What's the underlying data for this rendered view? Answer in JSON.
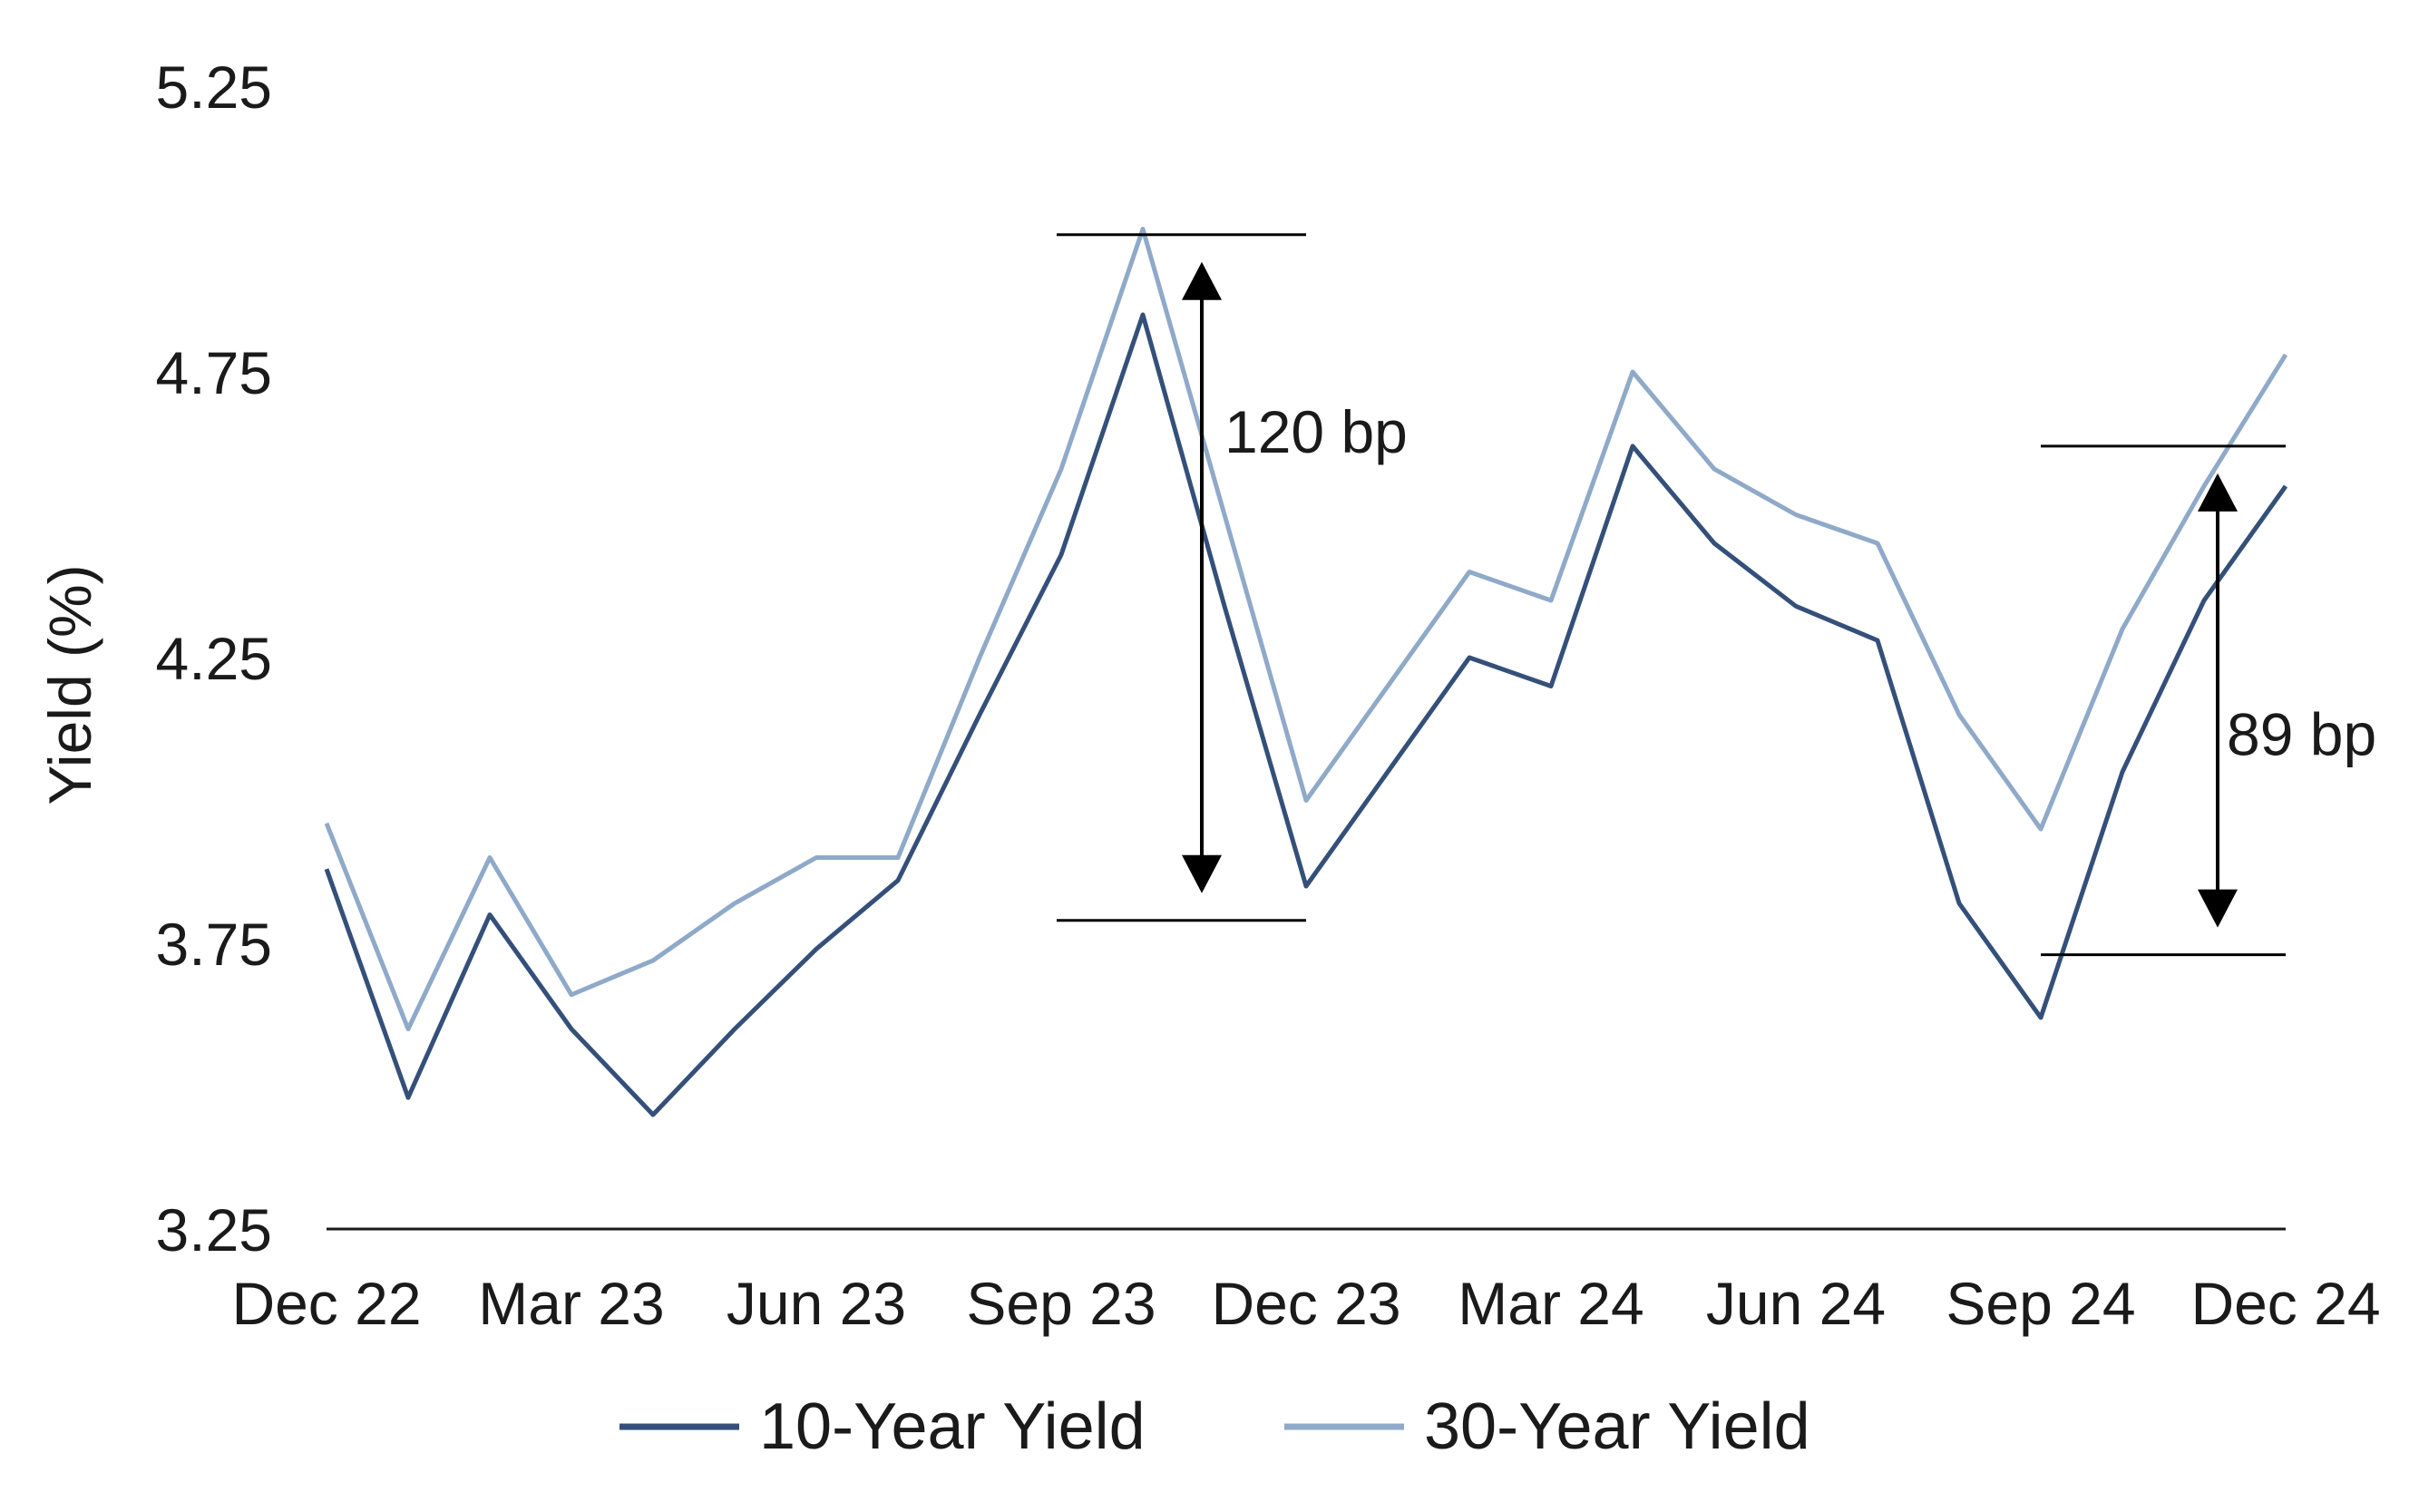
{
  "chart_data": {
    "type": "line",
    "title": "",
    "xlabel": "",
    "ylabel": "Yield (%)",
    "ylim": [
      3.25,
      5.25
    ],
    "yticks": [
      "3.25",
      "3.75",
      "4.25",
      "4.75",
      "5.25"
    ],
    "xticks": [
      "Dec 22",
      "Mar 23",
      "Jun 23",
      "Sep 23",
      "Dec 23",
      "Mar 24",
      "Jun 24",
      "Sep 24",
      "Dec 24"
    ],
    "grid": false,
    "legend_position": "bottom",
    "series": [
      {
        "name": "10-Year Yield",
        "color": "#34507a",
        "x": [
          "Dec 22",
          "Jan 23",
          "Feb 23",
          "Mar 23",
          "Apr 23",
          "May 23",
          "Jun 23",
          "Jul 23",
          "Aug 23",
          "Sep 23",
          "Oct 23",
          "Nov 23",
          "Dec 23",
          "Jan 24",
          "Feb 24",
          "Mar 24",
          "Apr 24",
          "May 24",
          "Jun 24",
          "Jul 24",
          "Aug 24",
          "Sep 24",
          "Oct 24",
          "Nov 24",
          "Dec 24"
        ],
        "values": [
          3.88,
          3.48,
          3.8,
          3.6,
          3.45,
          3.6,
          3.74,
          3.86,
          4.15,
          4.43,
          4.85,
          4.34,
          3.85,
          4.05,
          4.25,
          4.2,
          4.62,
          4.45,
          4.34,
          4.28,
          3.82,
          3.62,
          4.05,
          4.35,
          4.55
        ]
      },
      {
        "name": "30-Year Yield",
        "color": "#8fa9c9",
        "x": [
          "Dec 22",
          "Jan 23",
          "Feb 23",
          "Mar 23",
          "Apr 23",
          "May 23",
          "Jun 23",
          "Jul 23",
          "Aug 23",
          "Sep 23",
          "Oct 23",
          "Nov 23",
          "Dec 23",
          "Jan 24",
          "Feb 24",
          "Mar 24",
          "Apr 24",
          "May 24",
          "Jun 24",
          "Jul 24",
          "Aug 24",
          "Sep 24",
          "Oct 24",
          "Nov 24",
          "Dec 24"
        ],
        "values": [
          3.96,
          3.6,
          3.9,
          3.66,
          3.72,
          3.82,
          3.9,
          3.9,
          4.25,
          4.58,
          5.0,
          4.5,
          4.0,
          4.2,
          4.4,
          4.35,
          4.75,
          4.58,
          4.5,
          4.45,
          4.15,
          3.95,
          4.3,
          4.55,
          4.78
        ]
      }
    ],
    "annotations": [
      {
        "label": "120 bp",
        "from_value": 3.79,
        "to_value": 4.99,
        "start_date": "Sep 23",
        "end_date": "Dec 23"
      },
      {
        "label": "89 bp",
        "from_value": 3.73,
        "to_value": 4.62,
        "start_date": "Sep 24",
        "end_date": "Dec 24"
      }
    ]
  }
}
